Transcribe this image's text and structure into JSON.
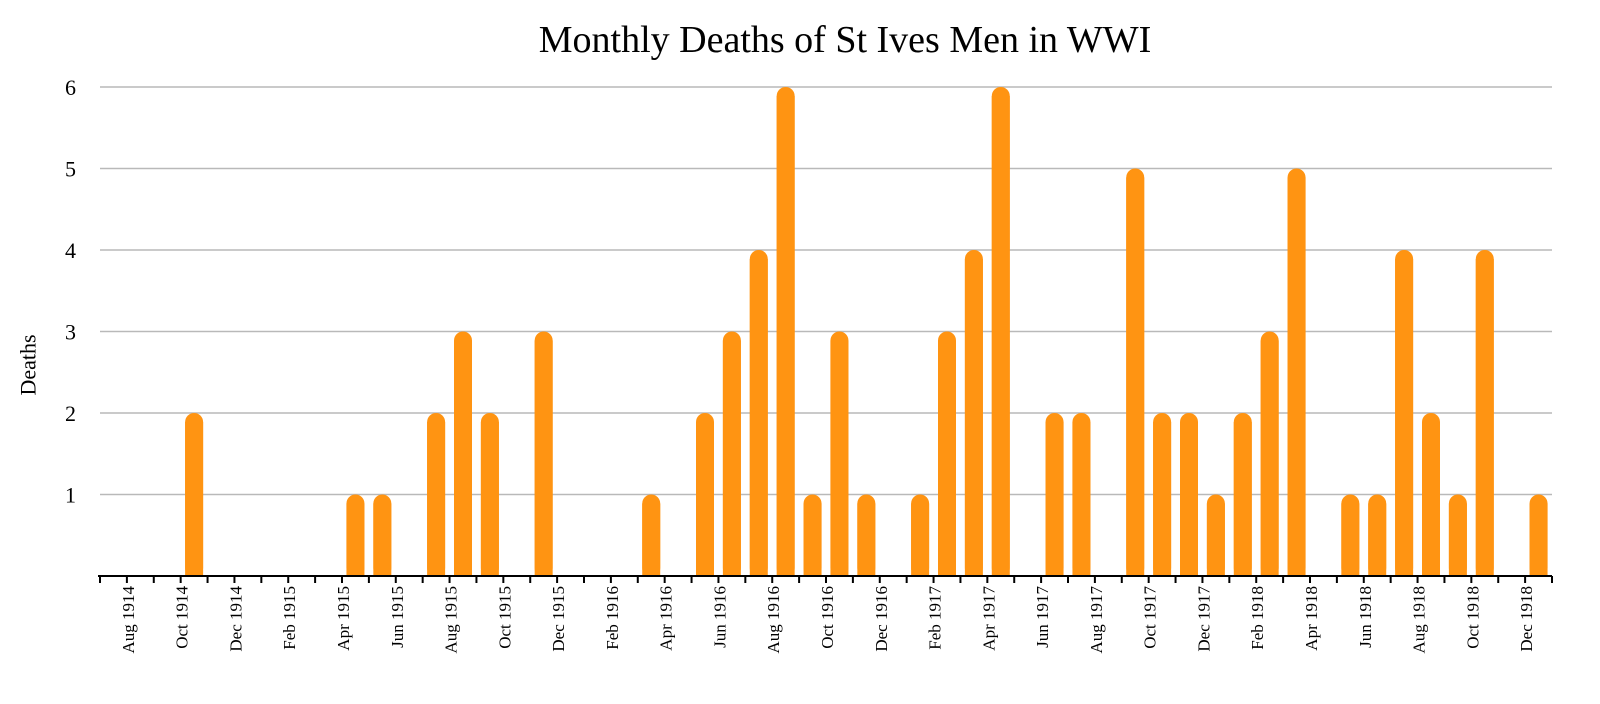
{
  "chart_data": {
    "type": "bar",
    "title": "Monthly Deaths of St Ives Men in WWI",
    "xlabel": "",
    "ylabel": "Deaths",
    "ylim": [
      0,
      6
    ],
    "yticks": [
      1,
      2,
      3,
      4,
      5,
      6
    ],
    "grid": true,
    "bar_color": "#FF9412",
    "grid_color": "#b9b9b9",
    "categories": [
      "Aug 1914",
      "Sep 1914",
      "Oct 1914",
      "Nov 1914",
      "Dec 1914",
      "Jan 1915",
      "Feb 1915",
      "Mar 1915",
      "Apr 1915",
      "May 1915",
      "Jun 1915",
      "Jul 1915",
      "Aug 1915",
      "Sep 1915",
      "Oct 1915",
      "Nov 1915",
      "Dec 1915",
      "Jan 1916",
      "Feb 1916",
      "Mar 1916",
      "Apr 1916",
      "May 1916",
      "Jun 1916",
      "Jul 1916",
      "Aug 1916",
      "Sep 1916",
      "Oct 1916",
      "Nov 1916",
      "Dec 1916",
      "Jan 1917",
      "Feb 1917",
      "Mar 1917",
      "Apr 1917",
      "May 1917",
      "Jun 1917",
      "Jul 1917",
      "Aug 1917",
      "Sep 1917",
      "Oct 1917",
      "Nov 1917",
      "Dec 1917",
      "Jan 1918",
      "Feb 1918",
      "Mar 1918",
      "Apr 1918",
      "May 1918",
      "Jun 1918",
      "Jul 1918",
      "Aug 1918",
      "Sep 1918",
      "Oct 1918",
      "Nov 1918",
      "Dec 1918",
      "Jan 1919"
    ],
    "tick_labels": [
      "Aug 1914",
      "Oct 1914",
      "Dec 1914",
      "Feb 1915",
      "Apr 1915",
      "Jun 1915",
      "Aug 1915",
      "Oct 1915",
      "Dec 1915",
      "Feb 1916",
      "Apr 1916",
      "Jun 1916",
      "Aug 1916",
      "Oct 1916",
      "Dec 1916",
      "Feb 1917",
      "Apr 1917",
      "Jun 1917",
      "Aug 1917",
      "Oct 1917",
      "Dec 1917",
      "Feb 1918",
      "Apr 1918",
      "Jun 1918",
      "Aug 1918",
      "Oct 1918",
      "Dec 1918"
    ],
    "values": [
      0,
      0,
      0,
      2,
      0,
      0,
      0,
      0,
      0,
      1,
      1,
      0,
      2,
      3,
      2,
      0,
      3,
      0,
      0,
      0,
      1,
      0,
      2,
      3,
      4,
      6,
      1,
      3,
      1,
      0,
      1,
      3,
      4,
      6,
      0,
      2,
      2,
      0,
      5,
      2,
      2,
      1,
      2,
      3,
      5,
      0,
      1,
      1,
      4,
      2,
      1,
      4,
      0,
      1
    ]
  }
}
